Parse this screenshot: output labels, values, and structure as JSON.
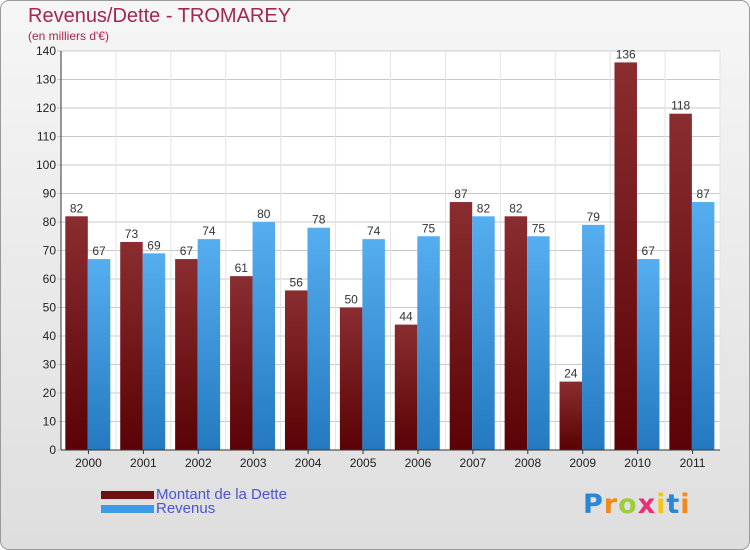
{
  "header": {
    "title": "Revenus/Dette - TROMAREY",
    "subtitle": "(en milliers d'€)"
  },
  "legend": {
    "items": [
      {
        "label": "Montant de la Dette",
        "color": "#6e0f14"
      },
      {
        "label": "Revenus",
        "color": "#3f9be6"
      }
    ]
  },
  "logo": {
    "text": "Proxiti",
    "letters": [
      "P",
      "r",
      "o",
      "x",
      "i",
      "t",
      "i"
    ],
    "colors": [
      "#2a86d6",
      "#f08a1c",
      "#9ccd3a",
      "#ef2d77",
      "#f3c51c",
      "#2a86d6",
      "#f08a1c"
    ]
  },
  "chart_data": {
    "type": "bar",
    "title": "Revenus/Dette - TROMAREY",
    "subtitle": "(en milliers d'€)",
    "categories": [
      "2000",
      "2001",
      "2002",
      "2003",
      "2004",
      "2005",
      "2006",
      "2007",
      "2008",
      "2009",
      "2010",
      "2011"
    ],
    "series": [
      {
        "name": "Montant de la Dette",
        "color": "#6e0f14",
        "values": [
          82,
          73,
          67,
          61,
          56,
          50,
          44,
          87,
          82,
          24,
          136,
          118
        ]
      },
      {
        "name": "Revenus",
        "color": "#3f9be6",
        "values": [
          67,
          69,
          74,
          80,
          78,
          74,
          75,
          82,
          75,
          79,
          67,
          87
        ]
      }
    ],
    "ylim": [
      0,
      140
    ],
    "yticks": [
      0,
      10,
      20,
      30,
      40,
      50,
      60,
      70,
      80,
      90,
      100,
      110,
      120,
      130,
      140
    ],
    "grid": true,
    "legend_position": "bottom-left"
  }
}
